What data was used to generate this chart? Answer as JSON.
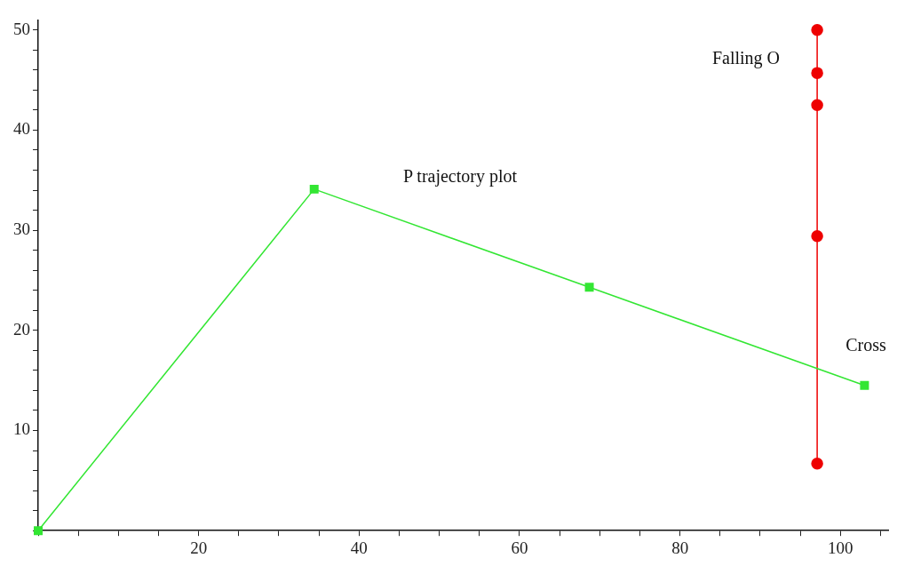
{
  "chart_data": {
    "type": "line",
    "xlim": [
      0,
      106
    ],
    "ylim": [
      0,
      51
    ],
    "xticks": [
      {
        "value": 0,
        "label": null
      },
      {
        "value": 5,
        "label": null
      },
      {
        "value": 10,
        "label": null
      },
      {
        "value": 15,
        "label": null
      },
      20,
      {
        "value": 25,
        "label": null
      },
      {
        "value": 30,
        "label": null
      },
      {
        "value": 35,
        "label": null
      },
      40,
      {
        "value": 45,
        "label": null
      },
      {
        "value": 50,
        "label": null
      },
      {
        "value": 55,
        "label": null
      },
      60,
      {
        "value": 65,
        "label": null
      },
      {
        "value": 70,
        "label": null
      },
      {
        "value": 75,
        "label": null
      },
      80,
      {
        "value": 85,
        "label": null
      },
      {
        "value": 90,
        "label": null
      },
      {
        "value": 95,
        "label": null
      },
      100,
      {
        "value": 105,
        "label": null
      }
    ],
    "yticks": [
      {
        "value": 0,
        "label": null
      },
      {
        "value": 2,
        "label": null
      },
      {
        "value": 4,
        "label": null
      },
      {
        "value": 6,
        "label": null
      },
      {
        "value": 8,
        "label": null
      },
      10,
      {
        "value": 12,
        "label": null
      },
      {
        "value": 14,
        "label": null
      },
      {
        "value": 16,
        "label": null
      },
      {
        "value": 18,
        "label": null
      },
      20,
      {
        "value": 22,
        "label": null
      },
      {
        "value": 24,
        "label": null
      },
      {
        "value": 26,
        "label": null
      },
      {
        "value": 28,
        "label": null
      },
      30,
      {
        "value": 32,
        "label": null
      },
      {
        "value": 34,
        "label": null
      },
      {
        "value": 36,
        "label": null
      },
      {
        "value": 38,
        "label": null
      },
      40,
      {
        "value": 42,
        "label": null
      },
      {
        "value": 44,
        "label": null
      },
      {
        "value": 46,
        "label": null
      },
      {
        "value": 48,
        "label": null
      },
      50
    ],
    "grid": false,
    "legend": false,
    "series": [
      {
        "color": "#33e633",
        "marker": "square",
        "x": [
          0,
          34.4,
          68.7,
          103.0
        ],
        "values": [
          0,
          34.1,
          24.3,
          14.5
        ]
      },
      {
        "color": "#ee0000",
        "marker": "circle",
        "x": [
          97.1,
          97.1,
          97.1,
          97.1,
          97.1
        ],
        "values": [
          50,
          45.7,
          42.5,
          29.4,
          6.7
        ]
      }
    ],
    "annotations": [
      "P trajectory plot",
      "Falling O",
      "Cross"
    ]
  }
}
